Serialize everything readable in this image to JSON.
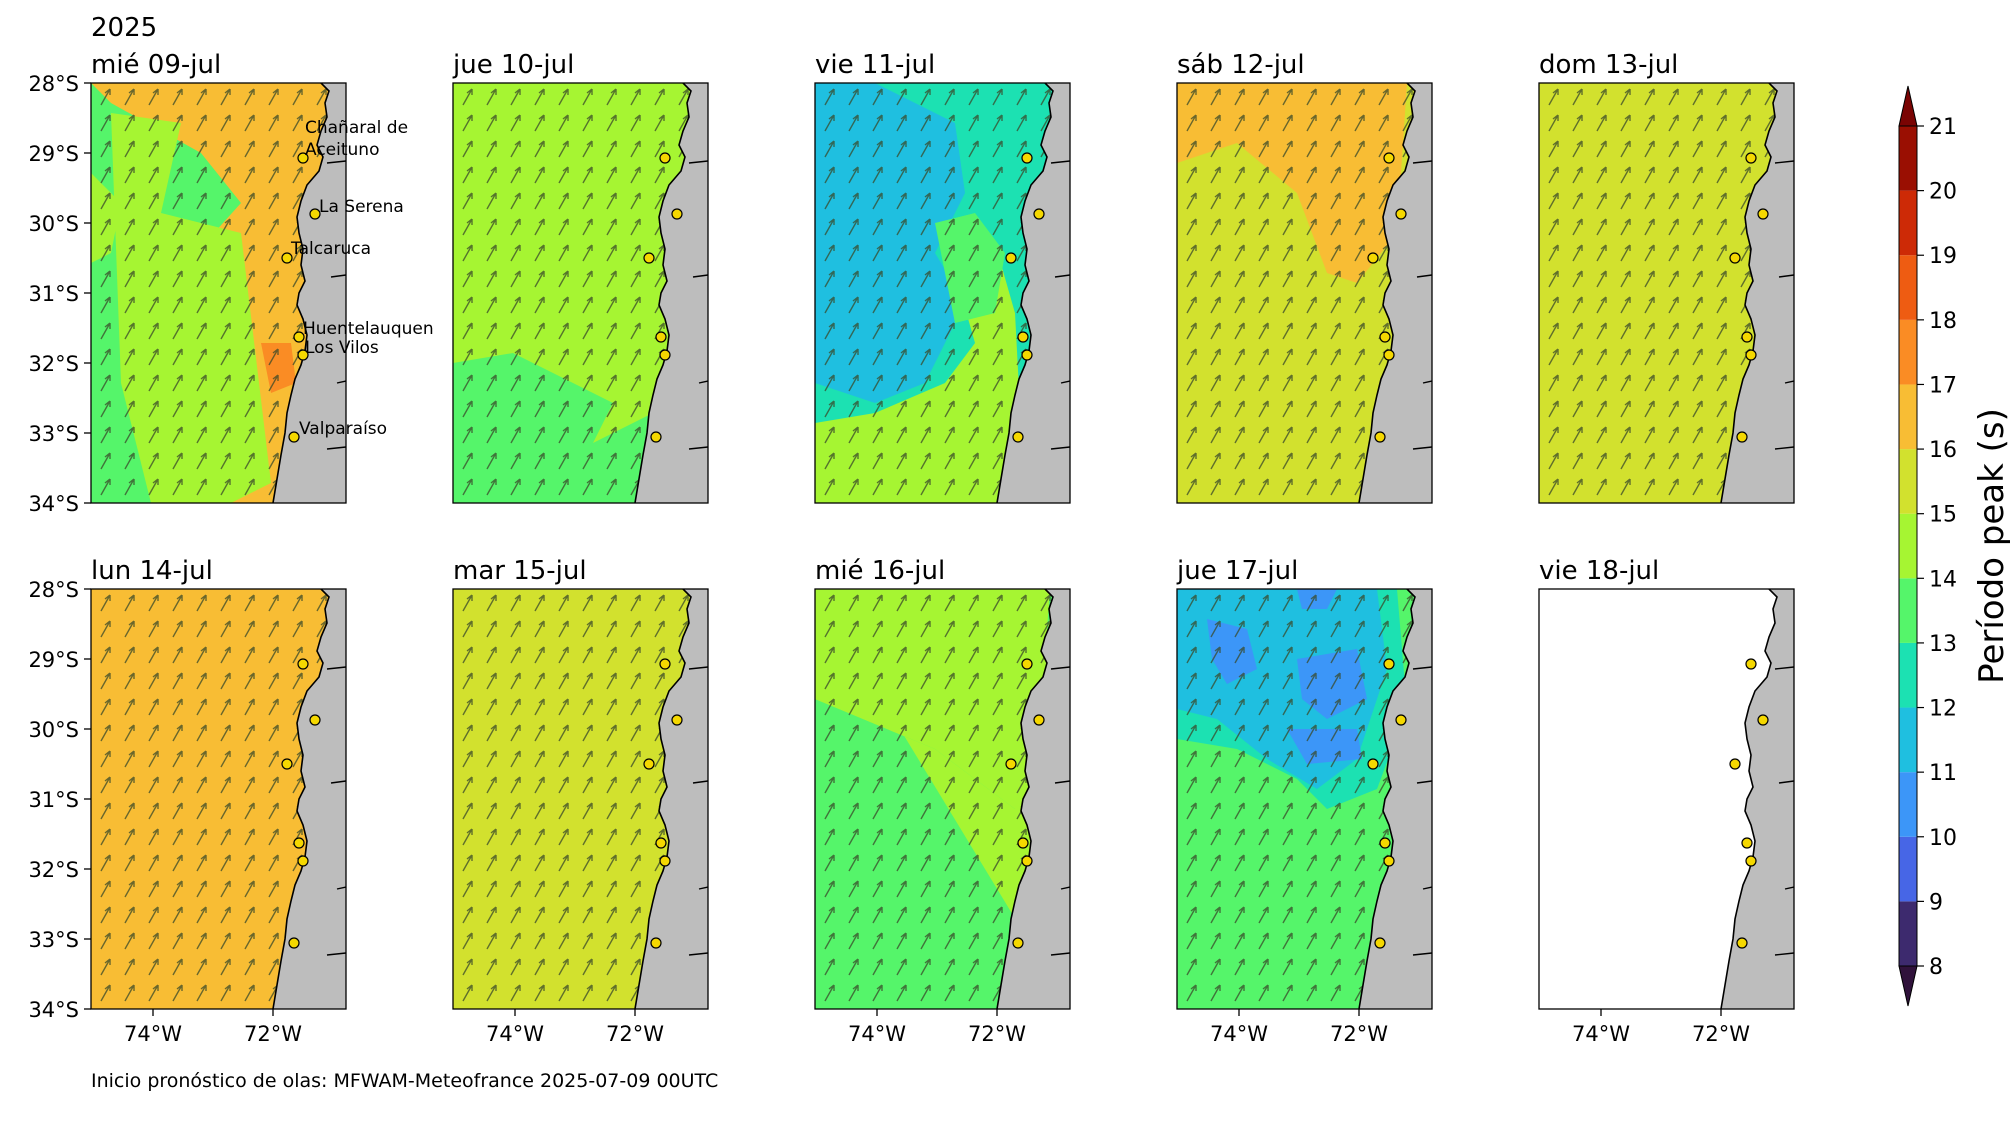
{
  "year_label": "2025",
  "footer": "Inicio pronóstico de olas: MFWAM-Meteofrance 2025-07-09 00UTC",
  "colorbar": {
    "label": "Período peak (s)",
    "ticks": [
      "8",
      "9",
      "10",
      "11",
      "12",
      "13",
      "14",
      "15",
      "16",
      "17",
      "18",
      "19",
      "20",
      "21"
    ],
    "colors": [
      "#3d2a6e",
      "#4766e6",
      "#3c96f8",
      "#1fbfe0",
      "#1ce1b2",
      "#55f56a",
      "#a6f532",
      "#d2e12e",
      "#f8bd34",
      "#fa8c24",
      "#ee5c12",
      "#cd2a06",
      "#9a0f02"
    ],
    "extend_low_color": "#30123b",
    "extend_high_color": "#7a0403"
  },
  "axes": {
    "lat_ticks": [
      "28°S",
      "29°S",
      "30°S",
      "31°S",
      "32°S",
      "33°S",
      "34°S"
    ],
    "lon_ticks": [
      "74°W",
      "72°W"
    ]
  },
  "stations": [
    "Chañaral de Aceituno",
    "La Serena",
    "Talcaruca",
    "Huentelauquen",
    "Los Vilos",
    "Valparaíso"
  ],
  "panels": [
    {
      "title": "mié 09-jul",
      "base": "#f8bd34",
      "arrows": true
    },
    {
      "title": "jue 10-jul",
      "base": "#a6f532",
      "arrows": true
    },
    {
      "title": "vie 11-jul",
      "base": "#1ce1b2",
      "arrows": true
    },
    {
      "title": "sáb 12-jul",
      "base": "#d2e12e",
      "arrows": true
    },
    {
      "title": "dom 13-jul",
      "base": "#d2e12e",
      "arrows": true
    },
    {
      "title": "lun 14-jul",
      "base": "#f8bd34",
      "arrows": true
    },
    {
      "title": "mar 15-jul",
      "base": "#d2e12e",
      "arrows": true
    },
    {
      "title": "mié 16-jul",
      "base": "#55f56a",
      "arrows": true
    },
    {
      "title": "jue 17-jul",
      "base": "#55f56a",
      "arrows": true
    },
    {
      "title": "vie 18-jul",
      "base": "#ffffff",
      "arrows": false
    }
  ]
}
